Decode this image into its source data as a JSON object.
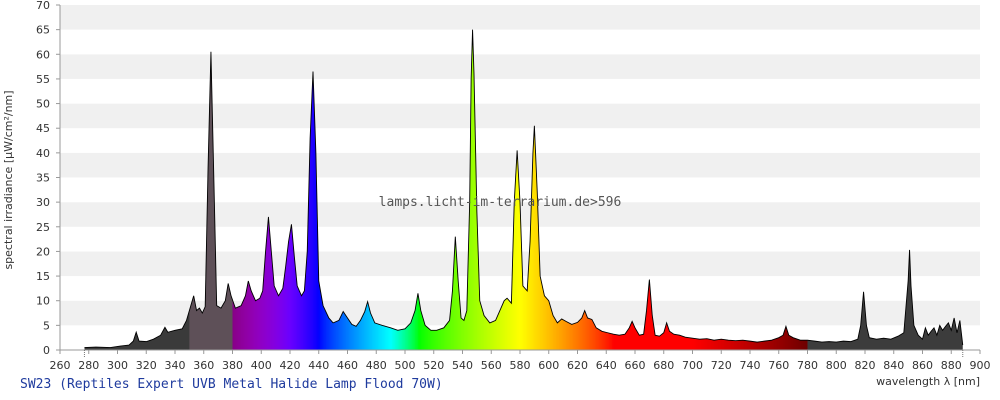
{
  "caption": "SW23 (Reptiles Expert UVB Metal Halide Lamp Flood 70W)",
  "watermark": "lamps.licht-im-terrarium.de>596",
  "chart_data": {
    "type": "area",
    "xlabel": "wavelength λ [nm]",
    "ylabel": "spectral irradiance [µW/cm²/nm]",
    "xlim": [
      260,
      900
    ],
    "ylim": [
      0,
      70
    ],
    "x_ticks": [
      260,
      280,
      300,
      320,
      340,
      360,
      380,
      400,
      420,
      440,
      460,
      480,
      500,
      520,
      540,
      560,
      580,
      600,
      620,
      640,
      660,
      680,
      700,
      720,
      740,
      760,
      780,
      800,
      820,
      840,
      860,
      880,
      900
    ],
    "y_ticks": [
      0,
      5,
      10,
      15,
      20,
      25,
      30,
      35,
      40,
      45,
      50,
      55,
      60,
      65,
      70
    ],
    "grid": "horizontal bands",
    "fill": "wavelength-colored spectrum",
    "x_range_data": [
      277,
      888
    ],
    "points": [
      [
        277,
        0.5
      ],
      [
        285,
        0.6
      ],
      [
        295,
        0.5
      ],
      [
        302,
        0.8
      ],
      [
        308,
        1.0
      ],
      [
        311,
        1.8
      ],
      [
        313,
        3.6
      ],
      [
        315,
        1.8
      ],
      [
        320,
        1.7
      ],
      [
        325,
        2.2
      ],
      [
        330,
        3.0
      ],
      [
        333,
        4.6
      ],
      [
        335,
        3.6
      ],
      [
        340,
        4.0
      ],
      [
        345,
        4.3
      ],
      [
        348,
        6.0
      ],
      [
        351,
        9.0
      ],
      [
        353,
        11.0
      ],
      [
        355,
        8.0
      ],
      [
        357,
        8.5
      ],
      [
        359,
        7.5
      ],
      [
        361,
        8.8
      ],
      [
        363,
        37.0
      ],
      [
        365,
        60.5
      ],
      [
        367,
        35.0
      ],
      [
        369,
        9.0
      ],
      [
        372,
        8.5
      ],
      [
        375,
        10.0
      ],
      [
        377,
        13.5
      ],
      [
        379,
        11.0
      ],
      [
        382,
        8.5
      ],
      [
        386,
        9.0
      ],
      [
        389,
        11.0
      ],
      [
        391,
        14.0
      ],
      [
        393,
        12.0
      ],
      [
        396,
        10.0
      ],
      [
        399,
        10.5
      ],
      [
        401,
        12.0
      ],
      [
        403,
        20.0
      ],
      [
        405,
        27.0
      ],
      [
        407,
        20.0
      ],
      [
        409,
        13.0
      ],
      [
        412,
        11.0
      ],
      [
        415,
        12.5
      ],
      [
        417,
        17.0
      ],
      [
        419,
        22.0
      ],
      [
        421,
        25.5
      ],
      [
        423,
        19.0
      ],
      [
        425,
        13.0
      ],
      [
        428,
        11.0
      ],
      [
        430,
        12.0
      ],
      [
        432,
        20.0
      ],
      [
        434,
        43.0
      ],
      [
        436,
        56.5
      ],
      [
        438,
        40.0
      ],
      [
        440,
        14.0
      ],
      [
        443,
        9.0
      ],
      [
        447,
        6.5
      ],
      [
        450,
        5.5
      ],
      [
        454,
        6.0
      ],
      [
        457,
        7.8
      ],
      [
        460,
        6.5
      ],
      [
        463,
        5.2
      ],
      [
        466,
        4.8
      ],
      [
        469,
        6.0
      ],
      [
        472,
        7.8
      ],
      [
        474,
        9.8
      ],
      [
        476,
        7.5
      ],
      [
        479,
        5.5
      ],
      [
        484,
        5.0
      ],
      [
        490,
        4.5
      ],
      [
        495,
        4.0
      ],
      [
        500,
        4.3
      ],
      [
        504,
        5.5
      ],
      [
        507,
        8.0
      ],
      [
        509,
        11.5
      ],
      [
        511,
        8.0
      ],
      [
        514,
        5.0
      ],
      [
        518,
        4.0
      ],
      [
        522,
        4.0
      ],
      [
        527,
        4.5
      ],
      [
        531,
        6.0
      ],
      [
        533,
        12.0
      ],
      [
        535,
        23.0
      ],
      [
        537,
        14.0
      ],
      [
        539,
        6.5
      ],
      [
        541,
        6.0
      ],
      [
        543,
        8.0
      ],
      [
        545,
        30.0
      ],
      [
        546,
        55.0
      ],
      [
        547,
        65.0
      ],
      [
        548,
        56.0
      ],
      [
        550,
        28.0
      ],
      [
        552,
        10.0
      ],
      [
        555,
        7.0
      ],
      [
        559,
        5.5
      ],
      [
        563,
        6.0
      ],
      [
        566,
        8.0
      ],
      [
        569,
        10.0
      ],
      [
        571,
        10.5
      ],
      [
        574,
        9.5
      ],
      [
        576,
        30.0
      ],
      [
        578,
        40.5
      ],
      [
        580,
        30.0
      ],
      [
        582,
        13.0
      ],
      [
        585,
        12.0
      ],
      [
        587,
        22.0
      ],
      [
        589,
        40.0
      ],
      [
        590,
        45.5
      ],
      [
        592,
        32.0
      ],
      [
        594,
        15.0
      ],
      [
        597,
        11.0
      ],
      [
        600,
        10.0
      ],
      [
        603,
        7.0
      ],
      [
        606,
        5.5
      ],
      [
        609,
        6.3
      ],
      [
        612,
        5.8
      ],
      [
        616,
        5.2
      ],
      [
        620,
        5.6
      ],
      [
        623,
        6.5
      ],
      [
        625,
        8.0
      ],
      [
        627,
        6.5
      ],
      [
        630,
        6.2
      ],
      [
        633,
        4.5
      ],
      [
        637,
        3.8
      ],
      [
        641,
        3.5
      ],
      [
        645,
        3.2
      ],
      [
        649,
        3.0
      ],
      [
        653,
        3.2
      ],
      [
        656,
        4.5
      ],
      [
        658,
        5.8
      ],
      [
        660,
        4.5
      ],
      [
        663,
        3.0
      ],
      [
        666,
        3.2
      ],
      [
        668,
        8.0
      ],
      [
        670,
        14.3
      ],
      [
        672,
        7.0
      ],
      [
        674,
        3.0
      ],
      [
        677,
        2.8
      ],
      [
        680,
        3.5
      ],
      [
        682,
        5.5
      ],
      [
        684,
        3.8
      ],
      [
        687,
        3.2
      ],
      [
        691,
        3.0
      ],
      [
        695,
        2.6
      ],
      [
        700,
        2.4
      ],
      [
        705,
        2.2
      ],
      [
        710,
        2.3
      ],
      [
        715,
        2.0
      ],
      [
        720,
        2.2
      ],
      [
        725,
        2.0
      ],
      [
        730,
        1.9
      ],
      [
        735,
        2.0
      ],
      [
        740,
        1.8
      ],
      [
        745,
        1.6
      ],
      [
        750,
        1.8
      ],
      [
        755,
        2.0
      ],
      [
        760,
        2.5
      ],
      [
        763,
        3.0
      ],
      [
        765,
        4.8
      ],
      [
        767,
        3.0
      ],
      [
        770,
        2.5
      ],
      [
        775,
        2.0
      ],
      [
        780,
        2.0
      ],
      [
        785,
        1.8
      ],
      [
        790,
        1.6
      ],
      [
        795,
        1.7
      ],
      [
        800,
        1.6
      ],
      [
        805,
        1.8
      ],
      [
        810,
        1.7
      ],
      [
        815,
        2.2
      ],
      [
        817,
        5.0
      ],
      [
        819,
        11.8
      ],
      [
        821,
        5.0
      ],
      [
        823,
        2.5
      ],
      [
        828,
        2.2
      ],
      [
        833,
        2.4
      ],
      [
        838,
        2.2
      ],
      [
        843,
        2.8
      ],
      [
        847,
        3.5
      ],
      [
        850,
        14.0
      ],
      [
        851,
        20.3
      ],
      [
        852,
        13.0
      ],
      [
        854,
        5.0
      ],
      [
        857,
        3.0
      ],
      [
        860,
        2.2
      ],
      [
        862,
        4.5
      ],
      [
        864,
        3.0
      ],
      [
        866,
        3.8
      ],
      [
        868,
        4.5
      ],
      [
        870,
        3.0
      ],
      [
        872,
        5.0
      ],
      [
        874,
        4.0
      ],
      [
        876,
        4.8
      ],
      [
        878,
        5.5
      ],
      [
        880,
        4.0
      ],
      [
        882,
        6.5
      ],
      [
        884,
        3.5
      ],
      [
        886,
        6.0
      ],
      [
        888,
        1.0
      ]
    ]
  }
}
